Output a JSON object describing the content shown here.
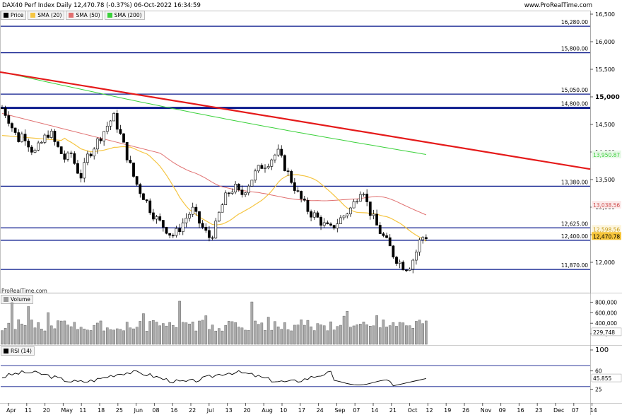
{
  "header": {
    "title": "DAX40 Perf Index Daily 12,470.78 (-0.37%) 06-Oct-2022 16:34:59",
    "site": "www.ProRealTime.com"
  },
  "legend": [
    {
      "label": "Price",
      "color": "#000000"
    },
    {
      "label": "SMA (20)",
      "color": "#f5c542"
    },
    {
      "label": "SMA (50)",
      "color": "#e07070"
    },
    {
      "label": "SMA (200)",
      "color": "#3bd13b"
    }
  ],
  "watermark": "ProRealTime.com",
  "volume_panel": {
    "label": "Volume",
    "ticks": [
      "800,000",
      "600,000",
      "400,000",
      "200,000"
    ],
    "last_value": "229,748"
  },
  "rsi_panel": {
    "label": "RSI (14)",
    "ticks": [
      "100",
      "60",
      "25"
    ],
    "last_value": "45.855"
  },
  "price_axis": {
    "ticks": [
      "16,500",
      "16,000",
      "15,500",
      "15,000",
      "14,500",
      "14,000",
      "13,500",
      "13,000",
      "12,500",
      "12,000"
    ],
    "labels": {
      "sma200": "13,950.87",
      "sma50": "13,038.56",
      "sma20": "12,598.56",
      "price": "12,470.78"
    }
  },
  "levels": [
    {
      "value": 16280,
      "label": "16,280.00"
    },
    {
      "value": 15800,
      "label": "15,800.00"
    },
    {
      "value": 15050,
      "label": "15,050.00"
    },
    {
      "value": 14800,
      "label": "14,800.00"
    },
    {
      "value": 13380,
      "label": "13,380.00"
    },
    {
      "value": 12625,
      "label": "12,625.00"
    },
    {
      "value": 12400,
      "label": "12,400.00"
    },
    {
      "value": 11870,
      "label": "11,870.00"
    }
  ],
  "x_labels": [
    "Apr",
    "11",
    "20",
    "May",
    "11",
    "18",
    "25",
    "Jun",
    "08",
    "16",
    "22",
    "Jul",
    "13",
    "20",
    "Aug",
    "10",
    "17",
    "24",
    "Sep",
    "07",
    "14",
    "21",
    "Oct",
    "12",
    "19",
    "26",
    "Nov",
    "09",
    "16",
    "23",
    "Dec",
    "07",
    "14"
  ],
  "trendline": {
    "start": [
      0,
      15450
    ],
    "end": [
      1,
      13690
    ]
  },
  "chart_data": {
    "type": "candlestick",
    "sma20_last": 12598.56,
    "sma50_last": 13038.56,
    "sma200_last": 13950.87,
    "last_close": 12470.78
  }
}
